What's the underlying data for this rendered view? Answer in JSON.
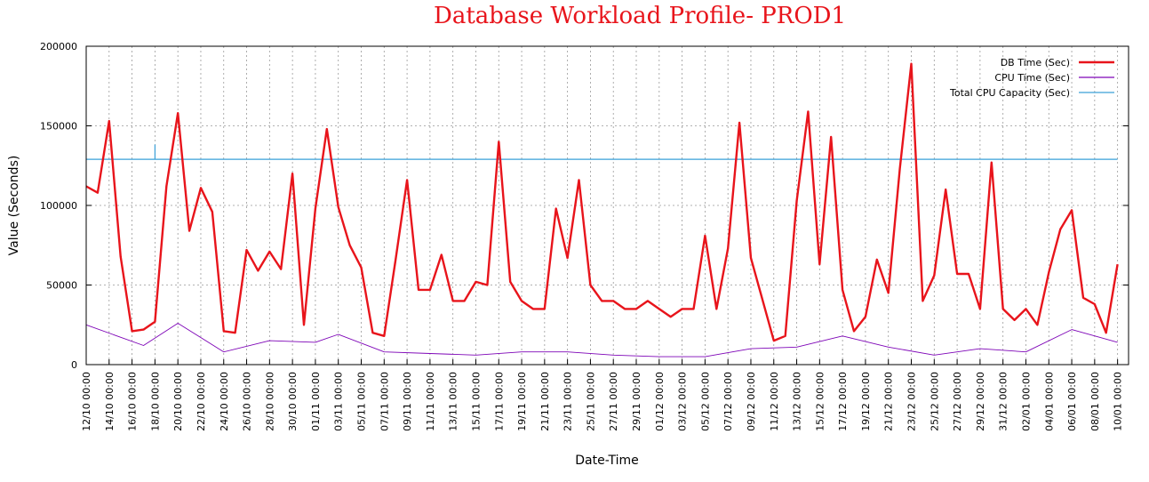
{
  "chart_data": {
    "type": "line",
    "title": "Database Workload Profile- PROD1",
    "xlabel": "Date-Time",
    "ylabel": "Value (Seconds)",
    "ylim": [
      0,
      200000
    ],
    "yticks": [
      "0",
      "50000",
      "100000",
      "150000",
      "200000"
    ],
    "yticks_values": [
      0,
      50000,
      100000,
      150000,
      200000
    ],
    "grid": true,
    "legend_position": "top-right",
    "x_start": "12/10 00:00",
    "x_end": "10/01 23:00",
    "xtick_labels": [
      "12/10 00:00",
      "14/10 00:00",
      "16/10 00:00",
      "18/10 00:00",
      "20/10 00:00",
      "22/10 00:00",
      "24/10 00:00",
      "26/10 00:00",
      "28/10 00:00",
      "30/10 00:00",
      "01/11 00:00",
      "03/11 00:00",
      "05/11 00:00",
      "07/11 00:00",
      "09/11 00:00",
      "11/11 00:00",
      "13/11 00:00",
      "15/11 00:00",
      "17/11 00:00",
      "19/11 00:00",
      "21/11 00:00",
      "23/11 00:00",
      "25/11 00:00",
      "27/11 00:00",
      "29/11 00:00",
      "01/12 00:00",
      "03/12 00:00",
      "05/12 00:00",
      "07/12 00:00",
      "09/12 00:00",
      "11/12 00:00",
      "13/12 00:00",
      "15/12 00:00",
      "17/12 00:00",
      "19/12 00:00",
      "21/12 00:00",
      "23/12 00:00",
      "25/12 00:00",
      "27/12 00:00",
      "29/12 00:00",
      "31/12 00:00",
      "02/01 00:00",
      "04/01 00:00",
      "06/01 00:00",
      "08/01 00:00",
      "10/01 00:00"
    ],
    "series": [
      {
        "name": "DB Time (Sec)",
        "color": "#e8141b",
        "x": [
          "12/10",
          "13/10",
          "14/10",
          "15/10",
          "16/10",
          "17/10",
          "18/10",
          "19/10",
          "20/10",
          "21/10",
          "22/10",
          "23/10",
          "24/10",
          "25/10",
          "26/10",
          "27/10",
          "28/10",
          "29/10",
          "30/10",
          "31/10",
          "01/11",
          "02/11",
          "03/11",
          "04/11",
          "05/11",
          "06/11",
          "07/11",
          "08/11",
          "09/11",
          "10/11",
          "11/11",
          "12/11",
          "13/11",
          "14/11",
          "15/11",
          "16/11",
          "17/11",
          "18/11",
          "19/11",
          "20/11",
          "21/11",
          "22/11",
          "23/11",
          "24/11",
          "25/11",
          "26/11",
          "27/11",
          "28/11",
          "29/11",
          "30/11",
          "01/12",
          "02/12",
          "03/12",
          "04/12",
          "05/12",
          "06/12",
          "07/12",
          "08/12",
          "09/12",
          "10/12",
          "11/12",
          "12/12",
          "13/12",
          "14/12",
          "15/12",
          "16/12",
          "17/12",
          "18/12",
          "19/12",
          "20/12",
          "21/12",
          "22/12",
          "23/12",
          "24/12",
          "25/12",
          "26/12",
          "27/12",
          "28/12",
          "29/12",
          "30/12",
          "31/12",
          "01/01",
          "02/01",
          "03/01",
          "04/01",
          "05/01",
          "06/01",
          "07/01",
          "08/01",
          "09/01",
          "10/01"
        ],
        "values": [
          112000,
          108000,
          153000,
          68000,
          21000,
          22000,
          27000,
          112000,
          158000,
          84000,
          111000,
          96000,
          21000,
          20000,
          72000,
          59000,
          71000,
          60000,
          120000,
          25000,
          98000,
          148000,
          99000,
          75000,
          61000,
          20000,
          18000,
          66000,
          116000,
          47000,
          47000,
          69000,
          40000,
          40000,
          52000,
          50000,
          140000,
          52000,
          40000,
          35000,
          35000,
          98000,
          67000,
          116000,
          50000,
          40000,
          40000,
          35000,
          35000,
          40000,
          35000,
          30000,
          35000,
          35000,
          81000,
          35000,
          73000,
          152000,
          67000,
          41000,
          15000,
          18000,
          103000,
          159000,
          63000,
          143000,
          47000,
          21000,
          30000,
          66000,
          45000,
          123000,
          189000,
          40000,
          56000,
          110000,
          57000,
          57000,
          35000,
          127000,
          35000,
          28000,
          35000,
          25000,
          58000,
          85000,
          97000,
          42000,
          38000,
          20000,
          63000
        ]
      },
      {
        "name": "CPU Time (Sec)",
        "color": "#7e05b7",
        "x": [
          "12/10",
          "17/10",
          "20/10",
          "24/10",
          "28/10",
          "01/11",
          "03/11",
          "07/11",
          "11/11",
          "15/11",
          "19/11",
          "23/11",
          "27/11",
          "01/12",
          "05/12",
          "09/12",
          "13/12",
          "17/12",
          "21/12",
          "25/12",
          "29/12",
          "02/01",
          "06/01",
          "10/01"
        ],
        "values": [
          25000,
          12000,
          26000,
          8000,
          15000,
          14000,
          19000,
          8000,
          7000,
          6000,
          8000,
          8000,
          6000,
          5000,
          5000,
          10000,
          11000,
          18000,
          11000,
          6000,
          10000,
          8000,
          22000,
          14000
        ]
      },
      {
        "name": "Total CPU Capacity (Sec)",
        "color": "#3aa0d8",
        "x": [
          "12/10",
          "18/10",
          "18/10",
          "18/10",
          "10/01"
        ],
        "values": [
          129000,
          129000,
          138000,
          129000,
          129000
        ]
      }
    ]
  }
}
